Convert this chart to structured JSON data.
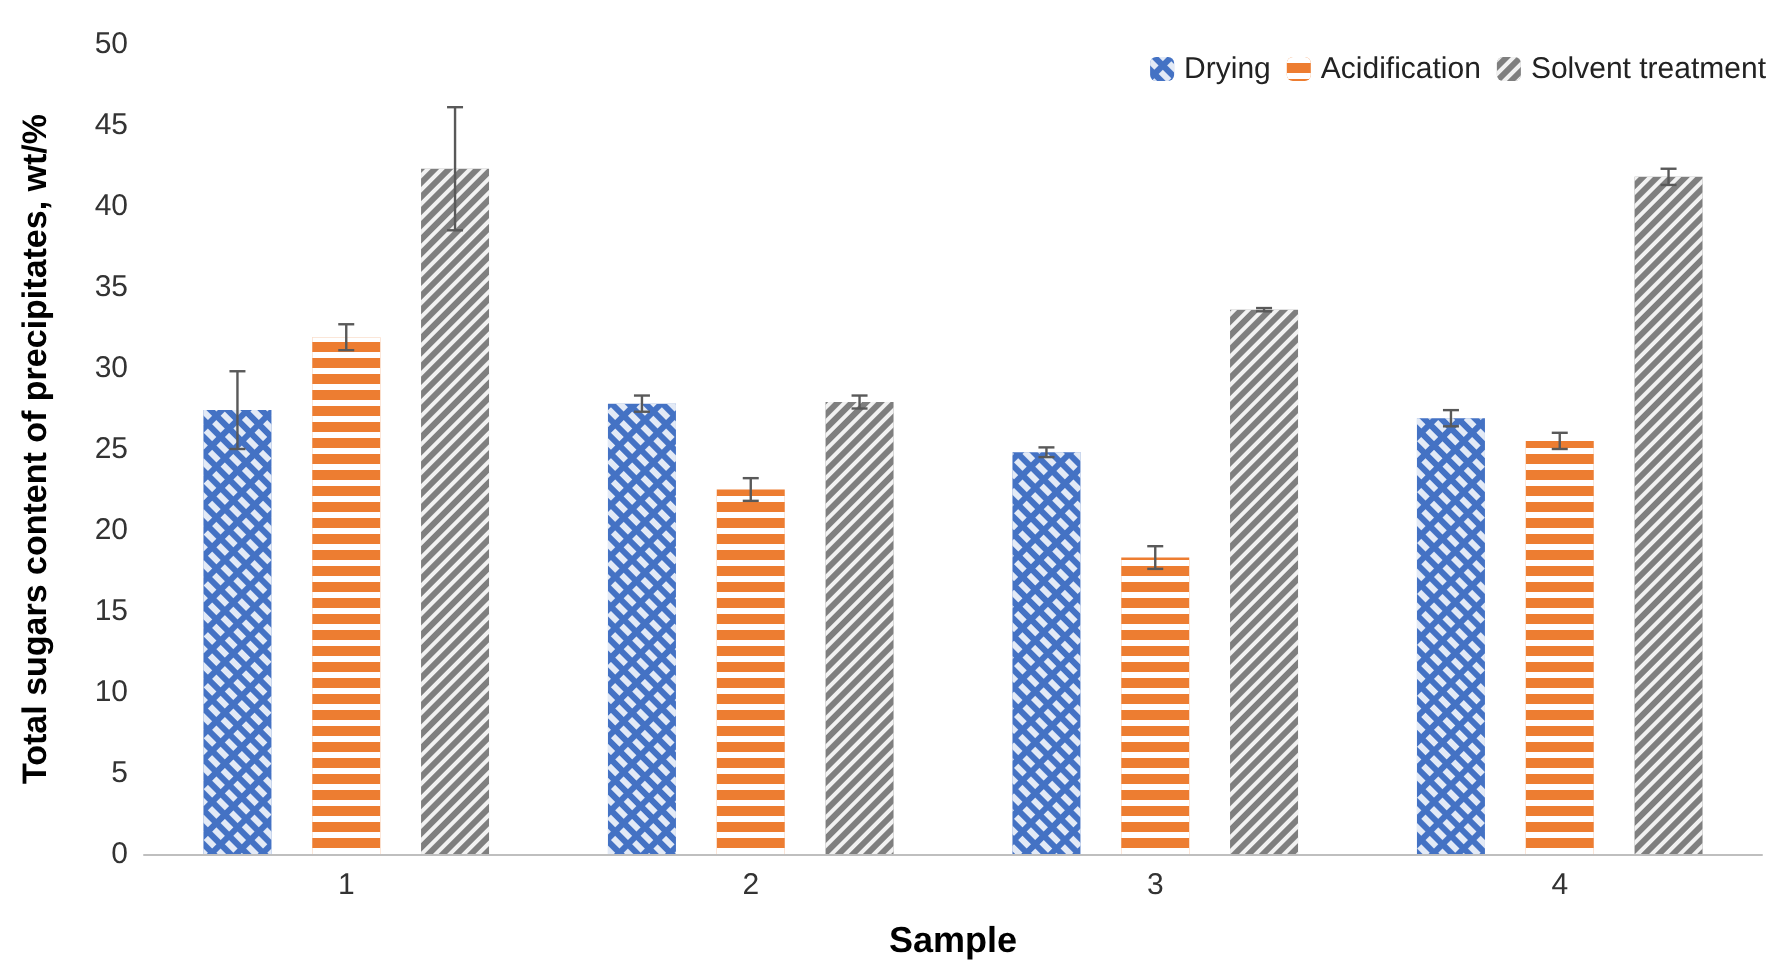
{
  "chart_data": {
    "type": "bar",
    "xlabel": "Sample",
    "ylabel": "Total sugars content of precipitates, wt/%",
    "categories": [
      "1",
      "2",
      "3",
      "4"
    ],
    "series": [
      {
        "name": "Drying",
        "color": "#4472c4",
        "values": [
          27.4,
          27.8,
          24.8,
          26.9
        ],
        "errors": [
          2.4,
          0.5,
          0.3,
          0.5
        ]
      },
      {
        "name": "Acidification",
        "color": "#ed7d31",
        "values": [
          31.9,
          22.5,
          18.3,
          25.5
        ],
        "errors": [
          0.8,
          0.7,
          0.7,
          0.5
        ]
      },
      {
        "name": "Solvent treatment",
        "color": "#7f7f7f",
        "values": [
          42.3,
          27.9,
          33.6,
          41.8
        ],
        "errors": [
          3.8,
          0.4,
          0.1,
          0.5
        ]
      }
    ],
    "ylim": [
      0,
      50
    ],
    "yticks": [
      0,
      5,
      10,
      15,
      20,
      25,
      30,
      35,
      40,
      45,
      50
    ],
    "grid": false,
    "legend": "top right"
  }
}
